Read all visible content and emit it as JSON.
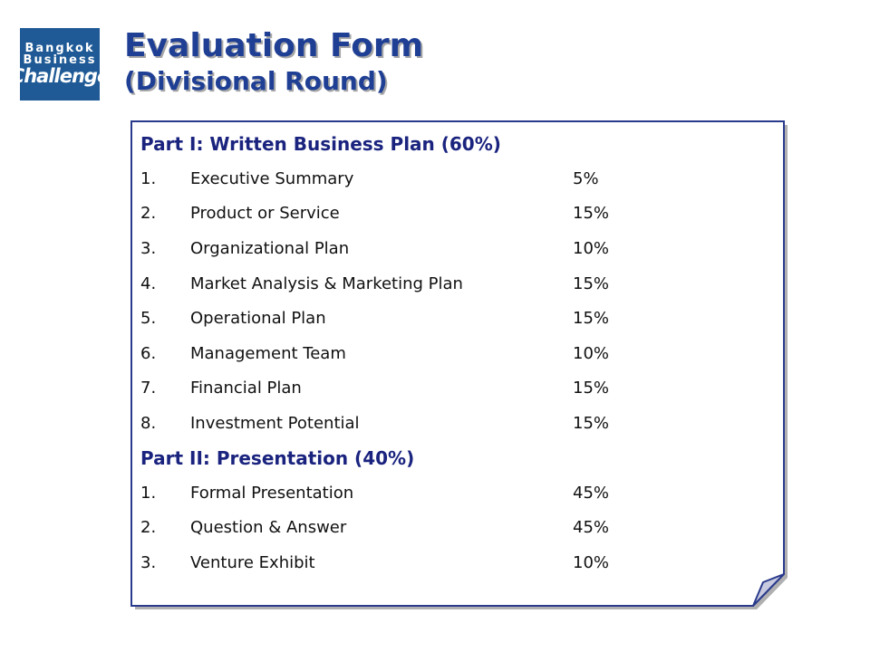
{
  "logo": {
    "line1": "Bangkok",
    "line2": "Business",
    "line3": "Challenge"
  },
  "title": {
    "main": "Evaluation Form",
    "sub": "(Divisional Round)"
  },
  "parts": [
    {
      "heading": "Part I: Written Business Plan (60%)",
      "items": [
        {
          "num": "1.",
          "label": "Executive Summary",
          "pct": "5%"
        },
        {
          "num": "2.",
          "label": "Product or Service",
          "pct": "15%"
        },
        {
          "num": "3.",
          "label": "Organizational Plan",
          "pct": "10%"
        },
        {
          "num": "4.",
          "label": "Market Analysis & Marketing Plan",
          "pct": "15%"
        },
        {
          "num": "5.",
          "label": "Operational Plan",
          "pct": "15%"
        },
        {
          "num": "6.",
          "label": "Management Team",
          "pct": "10%"
        },
        {
          "num": "7.",
          "label": "Financial Plan",
          "pct": "15%"
        },
        {
          "num": "8.",
          "label": "Investment Potential",
          "pct": "15%"
        }
      ]
    },
    {
      "heading": "Part II: Presentation (40%)",
      "items": [
        {
          "num": "1.",
          "label": "Formal Presentation",
          "pct": "45%"
        },
        {
          "num": "2.",
          "label": "Question & Answer",
          "pct": "45%"
        },
        {
          "num": "3.",
          "label": "Venture Exhibit",
          "pct": "10%"
        }
      ]
    }
  ],
  "colors": {
    "heading": "#1a237e",
    "title": "#1f3f94",
    "border": "#2a3a8c",
    "logo_bg": "#1f5a96"
  }
}
